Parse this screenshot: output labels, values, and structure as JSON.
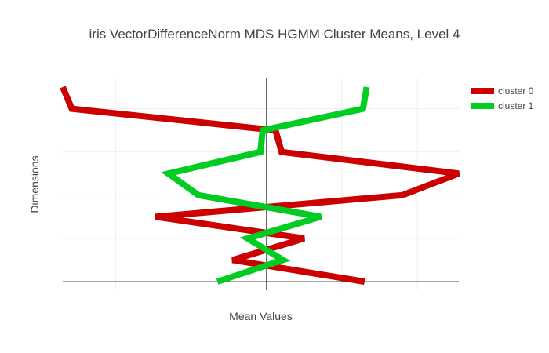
{
  "chart_data": {
    "type": "line",
    "title": "iris VectorDifferenceNorm MDS HGMM Cluster Means, Level 4",
    "xlabel": "Mean Values",
    "ylabel": "Dimensions",
    "xlim": [
      -0.27,
      0.255
    ],
    "ylim": [
      -0.2,
      4.7
    ],
    "series": [
      {
        "name": "cluster 0",
        "color": "#cc0000",
        "x": [
          0.13,
          -0.045,
          0.05,
          -0.147,
          0.18,
          0.255,
          0.02,
          0.012,
          -0.258,
          -0.27
        ],
        "y": [
          0,
          0.5,
          1,
          1.5,
          2,
          2.5,
          3,
          3.5,
          4,
          4.5
        ]
      },
      {
        "name": "cluster 1",
        "color": "#00cc22",
        "x": [
          -0.065,
          0.022,
          -0.025,
          0.072,
          -0.09,
          -0.13,
          -0.008,
          -0.005,
          0.128,
          0.133
        ],
        "y": [
          0,
          0.5,
          1,
          1.5,
          2,
          2.5,
          3,
          3.5,
          4,
          4.5
        ]
      }
    ]
  }
}
